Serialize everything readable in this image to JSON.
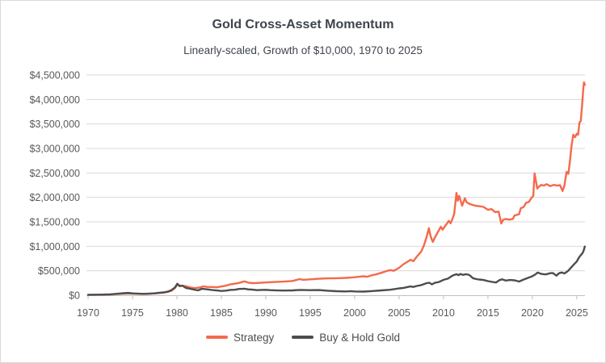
{
  "title": "Gold Cross-Asset Momentum",
  "subtitle": "Linearly-scaled, Growth of $10,000, 1970 to 2025",
  "legend": [
    {
      "label": "Strategy",
      "color": "#f5694c"
    },
    {
      "label": "Buy & Hold Gold",
      "color": "#4d4d4d"
    }
  ],
  "colors": {
    "grid": "#d9d9d9",
    "axis": "#bfbfbf",
    "tick_text": "#595959",
    "background": "#ffffff",
    "border": "#d9d9d9"
  },
  "chart_data": {
    "type": "line",
    "title": "Gold Cross-Asset Momentum",
    "subtitle": "Linearly-scaled, Growth of $10,000, 1970 to 2025",
    "grid": "horizontal",
    "legend_position": "bottom",
    "x_axis": {
      "range": [
        1970,
        2025.92
      ],
      "ticks": [
        1970,
        1975,
        1980,
        1985,
        1990,
        1995,
        2000,
        2005,
        2010,
        2015,
        2020,
        2025
      ],
      "labels": [
        "1970",
        "1975",
        "1980",
        "1985",
        "1990",
        "1995",
        "2000",
        "2005",
        "2010",
        "2015",
        "2020",
        "2025"
      ]
    },
    "y_axis": {
      "range": [
        0,
        4500000
      ],
      "ticks": [
        0,
        500000,
        1000000,
        1500000,
        2000000,
        2500000,
        3000000,
        3500000,
        4000000,
        4500000
      ],
      "labels": [
        "$0",
        "$500,000",
        "$1,000,000",
        "$1,500,000",
        "$2,000,000",
        "$2,500,000",
        "$3,000,000",
        "$3,500,000",
        "$4,000,000",
        "$4,500,000"
      ]
    },
    "series": [
      {
        "name": "Strategy",
        "color": "#f5694c",
        "points": [
          [
            1970,
            10000
          ],
          [
            1970.5,
            10500
          ],
          [
            1971,
            11500
          ],
          [
            1971.5,
            12500
          ],
          [
            1972,
            14500
          ],
          [
            1972.5,
            17000
          ],
          [
            1973,
            23000
          ],
          [
            1973.5,
            28000
          ],
          [
            1974,
            33000
          ],
          [
            1974.5,
            37000
          ],
          [
            1975,
            31000
          ],
          [
            1975.5,
            29000
          ],
          [
            1976,
            26000
          ],
          [
            1976.5,
            27000
          ],
          [
            1977,
            32000
          ],
          [
            1977.5,
            36000
          ],
          [
            1978,
            46000
          ],
          [
            1978.5,
            54000
          ],
          [
            1979,
            70000
          ],
          [
            1979.4,
            95000
          ],
          [
            1979.8,
            150000
          ],
          [
            1980.05,
            225000
          ],
          [
            1980.3,
            185000
          ],
          [
            1980.6,
            195000
          ],
          [
            1981,
            185000
          ],
          [
            1981.5,
            160000
          ],
          [
            1982,
            145000
          ],
          [
            1982.5,
            158000
          ],
          [
            1983,
            182000
          ],
          [
            1983.4,
            170000
          ],
          [
            1984,
            168000
          ],
          [
            1984.5,
            162000
          ],
          [
            1985,
            180000
          ],
          [
            1985.5,
            195000
          ],
          [
            1986,
            222000
          ],
          [
            1986.5,
            235000
          ],
          [
            1987,
            252000
          ],
          [
            1987.6,
            283000
          ],
          [
            1988,
            258000
          ],
          [
            1988.5,
            247000
          ],
          [
            1989,
            250000
          ],
          [
            1989.5,
            255000
          ],
          [
            1990,
            262000
          ],
          [
            1991,
            270000
          ],
          [
            1992,
            278000
          ],
          [
            1993,
            292000
          ],
          [
            1993.8,
            330000
          ],
          [
            1994.2,
            315000
          ],
          [
            1995,
            325000
          ],
          [
            1996,
            338000
          ],
          [
            1997,
            344000
          ],
          [
            1998,
            348000
          ],
          [
            1999,
            354000
          ],
          [
            2000,
            368000
          ],
          [
            2000.5,
            378000
          ],
          [
            2001,
            388000
          ],
          [
            2001.4,
            378000
          ],
          [
            2002,
            412000
          ],
          [
            2002.5,
            430000
          ],
          [
            2003,
            458000
          ],
          [
            2003.5,
            488000
          ],
          [
            2004,
            515000
          ],
          [
            2004.4,
            500000
          ],
          [
            2005,
            560000
          ],
          [
            2005.5,
            635000
          ],
          [
            2006,
            690000
          ],
          [
            2006.3,
            725000
          ],
          [
            2006.6,
            695000
          ],
          [
            2007,
            790000
          ],
          [
            2007.5,
            895000
          ],
          [
            2007.8,
            1020000
          ],
          [
            2008.1,
            1190000
          ],
          [
            2008.35,
            1370000
          ],
          [
            2008.5,
            1240000
          ],
          [
            2008.65,
            1150000
          ],
          [
            2008.8,
            1090000
          ],
          [
            2009,
            1170000
          ],
          [
            2009.3,
            1270000
          ],
          [
            2009.7,
            1400000
          ],
          [
            2009.9,
            1340000
          ],
          [
            2010.2,
            1420000
          ],
          [
            2010.6,
            1520000
          ],
          [
            2010.8,
            1470000
          ],
          [
            2011,
            1560000
          ],
          [
            2011.2,
            1660000
          ],
          [
            2011.45,
            2090000
          ],
          [
            2011.6,
            1930000
          ],
          [
            2011.75,
            2030000
          ],
          [
            2011.9,
            1950000
          ],
          [
            2012.1,
            1830000
          ],
          [
            2012.4,
            1980000
          ],
          [
            2012.6,
            1900000
          ],
          [
            2012.9,
            1870000
          ],
          [
            2013.2,
            1850000
          ],
          [
            2013.6,
            1830000
          ],
          [
            2014,
            1820000
          ],
          [
            2014.5,
            1805000
          ],
          [
            2015,
            1745000
          ],
          [
            2015.4,
            1760000
          ],
          [
            2015.8,
            1700000
          ],
          [
            2016.2,
            1710000
          ],
          [
            2016.5,
            1465000
          ],
          [
            2016.7,
            1540000
          ],
          [
            2017,
            1560000
          ],
          [
            2017.4,
            1545000
          ],
          [
            2017.8,
            1560000
          ],
          [
            2018,
            1630000
          ],
          [
            2018.3,
            1645000
          ],
          [
            2018.5,
            1655000
          ],
          [
            2018.7,
            1780000
          ],
          [
            2019,
            1800000
          ],
          [
            2019.3,
            1890000
          ],
          [
            2019.6,
            1905000
          ],
          [
            2019.9,
            1990000
          ],
          [
            2020.1,
            2030000
          ],
          [
            2020.25,
            2490000
          ],
          [
            2020.4,
            2330000
          ],
          [
            2020.55,
            2180000
          ],
          [
            2020.8,
            2230000
          ],
          [
            2021,
            2255000
          ],
          [
            2021.3,
            2240000
          ],
          [
            2021.6,
            2270000
          ],
          [
            2022,
            2230000
          ],
          [
            2022.4,
            2255000
          ],
          [
            2022.8,
            2240000
          ],
          [
            2023.1,
            2250000
          ],
          [
            2023.4,
            2130000
          ],
          [
            2023.6,
            2240000
          ],
          [
            2023.85,
            2520000
          ],
          [
            2024.05,
            2480000
          ],
          [
            2024.2,
            2700000
          ],
          [
            2024.4,
            3050000
          ],
          [
            2024.6,
            3280000
          ],
          [
            2024.8,
            3230000
          ],
          [
            2025,
            3300000
          ],
          [
            2025.15,
            3280000
          ],
          [
            2025.3,
            3530000
          ],
          [
            2025.45,
            3560000
          ],
          [
            2025.6,
            3900000
          ],
          [
            2025.72,
            4200000
          ],
          [
            2025.8,
            4350000
          ],
          [
            2025.9,
            4300000
          ]
        ]
      },
      {
        "name": "Buy & Hold Gold",
        "color": "#4d4d4d",
        "points": [
          [
            1970,
            10000
          ],
          [
            1970.5,
            10300
          ],
          [
            1971,
            11000
          ],
          [
            1971.5,
            12000
          ],
          [
            1972,
            14500
          ],
          [
            1972.5,
            18000
          ],
          [
            1973,
            26000
          ],
          [
            1973.5,
            33000
          ],
          [
            1974,
            41000
          ],
          [
            1974.5,
            48000
          ],
          [
            1975,
            38000
          ],
          [
            1975.5,
            35000
          ],
          [
            1976,
            29000
          ],
          [
            1976.5,
            30000
          ],
          [
            1977,
            35000
          ],
          [
            1977.5,
            40000
          ],
          [
            1978,
            50000
          ],
          [
            1978.5,
            58000
          ],
          [
            1979,
            75000
          ],
          [
            1979.4,
            105000
          ],
          [
            1979.8,
            165000
          ],
          [
            1980.05,
            235000
          ],
          [
            1980.3,
            190000
          ],
          [
            1980.6,
            196000
          ],
          [
            1981,
            150000
          ],
          [
            1981.5,
            132000
          ],
          [
            1982,
            112000
          ],
          [
            1982.4,
            100000
          ],
          [
            1982.8,
            132000
          ],
          [
            1983,
            128000
          ],
          [
            1983.5,
            118000
          ],
          [
            1984,
            106000
          ],
          [
            1984.5,
            98000
          ],
          [
            1985,
            88000
          ],
          [
            1985.5,
            94000
          ],
          [
            1986,
            108000
          ],
          [
            1986.5,
            112000
          ],
          [
            1987,
            128000
          ],
          [
            1987.6,
            133000
          ],
          [
            1988,
            120000
          ],
          [
            1988.5,
            114000
          ],
          [
            1989,
            104000
          ],
          [
            1989.5,
            108000
          ],
          [
            1990,
            110000
          ],
          [
            1990.5,
            104000
          ],
          [
            1991,
            100000
          ],
          [
            1992,
            96000
          ],
          [
            1993,
            99000
          ],
          [
            1993.8,
            108000
          ],
          [
            1994.5,
            106000
          ],
          [
            1995,
            104000
          ],
          [
            1996,
            106000
          ],
          [
            1997,
            92000
          ],
          [
            1998,
            82000
          ],
          [
            1999,
            78000
          ],
          [
            1999.6,
            84000
          ],
          [
            2000,
            77000
          ],
          [
            2001,
            74000
          ],
          [
            2002,
            86000
          ],
          [
            2003,
            99000
          ],
          [
            2004,
            112000
          ],
          [
            2005,
            140000
          ],
          [
            2005.5,
            150000
          ],
          [
            2006,
            170000
          ],
          [
            2006.3,
            180000
          ],
          [
            2006.6,
            170000
          ],
          [
            2007,
            190000
          ],
          [
            2007.5,
            207000
          ],
          [
            2008.1,
            248000
          ],
          [
            2008.4,
            255000
          ],
          [
            2008.7,
            222000
          ],
          [
            2009,
            252000
          ],
          [
            2009.5,
            272000
          ],
          [
            2010,
            315000
          ],
          [
            2010.5,
            340000
          ],
          [
            2011,
            400000
          ],
          [
            2011.45,
            430000
          ],
          [
            2011.7,
            410000
          ],
          [
            2011.9,
            435000
          ],
          [
            2012.2,
            415000
          ],
          [
            2012.5,
            430000
          ],
          [
            2012.8,
            420000
          ],
          [
            2013,
            400000
          ],
          [
            2013.3,
            350000
          ],
          [
            2013.7,
            330000
          ],
          [
            2014,
            322000
          ],
          [
            2014.5,
            312000
          ],
          [
            2015,
            288000
          ],
          [
            2015.5,
            272000
          ],
          [
            2015.9,
            260000
          ],
          [
            2016.3,
            310000
          ],
          [
            2016.6,
            325000
          ],
          [
            2017,
            300000
          ],
          [
            2017.5,
            312000
          ],
          [
            2018,
            305000
          ],
          [
            2018.5,
            280000
          ],
          [
            2019,
            320000
          ],
          [
            2019.5,
            355000
          ],
          [
            2019.9,
            380000
          ],
          [
            2020.3,
            420000
          ],
          [
            2020.6,
            465000
          ],
          [
            2021,
            435000
          ],
          [
            2021.5,
            425000
          ],
          [
            2022,
            450000
          ],
          [
            2022.3,
            455000
          ],
          [
            2022.7,
            400000
          ],
          [
            2023,
            450000
          ],
          [
            2023.3,
            465000
          ],
          [
            2023.6,
            445000
          ],
          [
            2024,
            495000
          ],
          [
            2024.3,
            555000
          ],
          [
            2024.6,
            615000
          ],
          [
            2024.8,
            655000
          ],
          [
            2025,
            690000
          ],
          [
            2025.2,
            760000
          ],
          [
            2025.4,
            810000
          ],
          [
            2025.6,
            850000
          ],
          [
            2025.75,
            900000
          ],
          [
            2025.9,
            995000
          ]
        ]
      }
    ]
  }
}
